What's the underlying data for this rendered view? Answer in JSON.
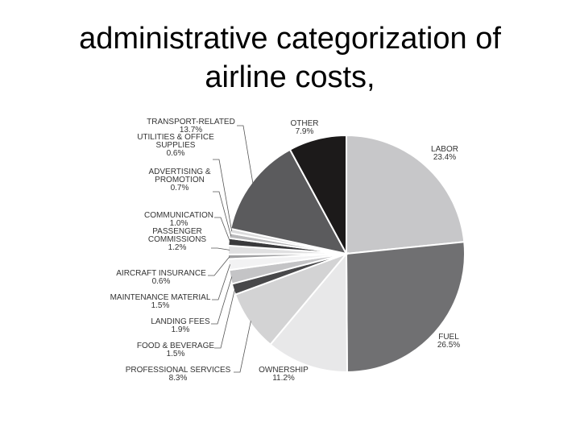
{
  "slide": {
    "title_line1": "administrative categorization of",
    "title_line2": "airline costs,"
  },
  "chart_data": {
    "type": "pie",
    "title": "",
    "slices": [
      {
        "name": "LABOR",
        "value": 23.4,
        "value_label": "23.4%",
        "color": "#c7c7c9"
      },
      {
        "name": "FUEL",
        "value": 26.5,
        "value_label": "26.5%",
        "color": "#707072"
      },
      {
        "name": "OWNERSHIP",
        "value": 11.2,
        "value_label": "11.2%",
        "color": "#e8e8e9"
      },
      {
        "name": "PROFESSIONAL SERVICES",
        "value": 8.3,
        "value_label": "8.3%",
        "color": "#d3d3d4"
      },
      {
        "name": "FOOD & BEVERAGE",
        "value": 1.5,
        "value_label": "1.5%",
        "color": "#48484a"
      },
      {
        "name": "LANDING FEES",
        "value": 1.9,
        "value_label": "1.9%",
        "color": "#c4c4c6"
      },
      {
        "name": "MAINTENANCE MATERIAL",
        "value": 1.5,
        "value_label": "1.5%",
        "color": "#f2f2f3"
      },
      {
        "name": "AIRCRAFT INSURANCE",
        "value": 0.6,
        "value_label": "0.6%",
        "color": "#a0a0a2"
      },
      {
        "name": "PASSENGER COMMISSIONS",
        "value": 1.2,
        "value_label": "1.2%",
        "color": "#e0e0e1"
      },
      {
        "name": "COMMUNICATION",
        "value": 1.0,
        "value_label": "1.0%",
        "color": "#3a3a3c"
      },
      {
        "name": "ADVERTISING & PROMOTION",
        "value": 0.7,
        "value_label": "0.7%",
        "color": "#b8b8ba"
      },
      {
        "name": "UTILITIES & OFFICE SUPPLIES",
        "value": 0.6,
        "value_label": "0.6%",
        "color": "#dcdcdd"
      },
      {
        "name": "TRANSPORT-RELATED",
        "value": 13.7,
        "value_label": "13.7%",
        "color": "#5b5b5d"
      },
      {
        "name": "OTHER",
        "value": 7.9,
        "value_label": "7.9%",
        "color": "#1c1a1a"
      }
    ]
  }
}
